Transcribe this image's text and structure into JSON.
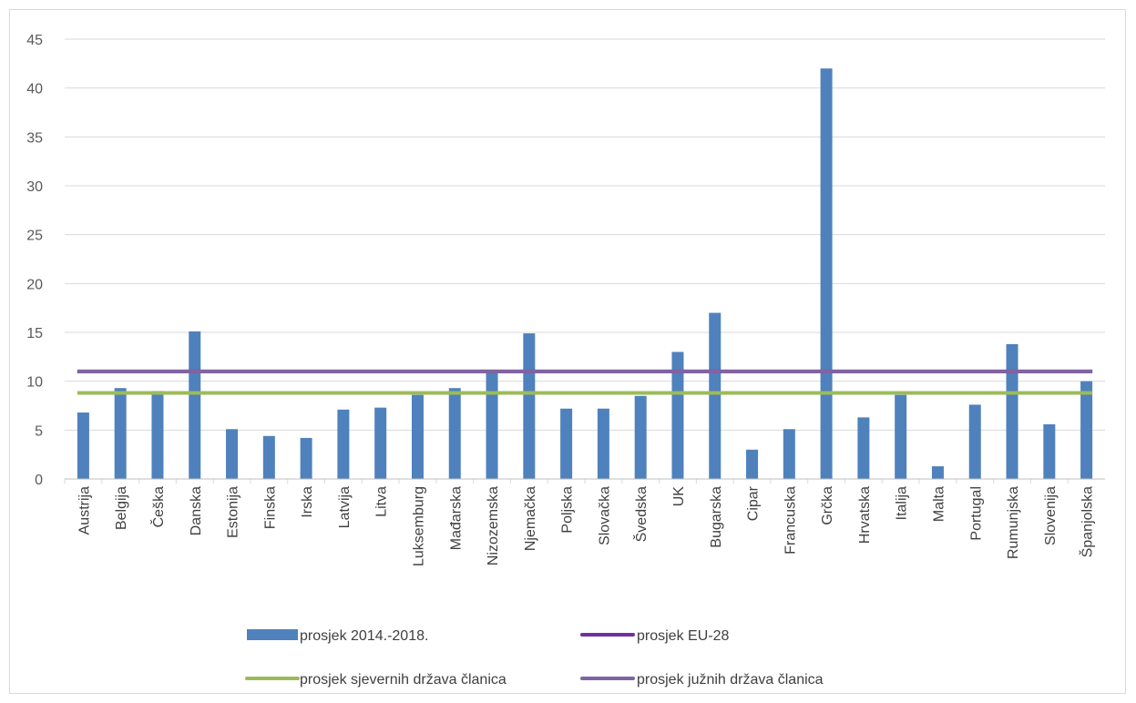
{
  "chart_data": {
    "type": "bar",
    "title": "",
    "xlabel": "",
    "ylabel": "",
    "ylim": [
      0,
      45
    ],
    "yticks": [
      0,
      5,
      10,
      15,
      20,
      25,
      30,
      35,
      40,
      45
    ],
    "grid": true,
    "legend_position": "bottom",
    "categories": [
      "Austrija",
      "Belgija",
      "Češka",
      "Danska",
      "Estonija",
      "Finska",
      "Irska",
      "Latvija",
      "Litva",
      "Luksemburg",
      "Mađarska",
      "Nizozemska",
      "Njemačka",
      "Poljska",
      "Slovačka",
      "Švedska",
      "UK",
      "Bugarska",
      "Cipar",
      "Francuska",
      "Grčka",
      "Hrvatska",
      "Italija",
      "Malta",
      "Portugal",
      "Rumunjska",
      "Slovenija",
      "Španjolska"
    ],
    "series": [
      {
        "name": "prosjek 2014.-2018.",
        "kind": "bar",
        "color": "#4f81bd",
        "values": [
          6.8,
          9.3,
          9.0,
          15.1,
          5.1,
          4.4,
          4.2,
          7.1,
          7.3,
          8.6,
          9.3,
          11.0,
          14.9,
          7.2,
          7.2,
          8.5,
          13.0,
          17.0,
          3.0,
          5.1,
          42.0,
          6.3,
          8.6,
          1.3,
          7.6,
          13.8,
          5.6,
          10.0
        ]
      },
      {
        "name": "prosjek EU-28",
        "kind": "line",
        "color": "#7030a0",
        "value": 11.0
      },
      {
        "name": "prosjek sjevernih država članica",
        "kind": "line",
        "color": "#9bbb59",
        "value": 8.8
      },
      {
        "name": "prosjek južnih država članica",
        "kind": "line",
        "color": "#8064a2",
        "value": 11.0
      }
    ]
  }
}
